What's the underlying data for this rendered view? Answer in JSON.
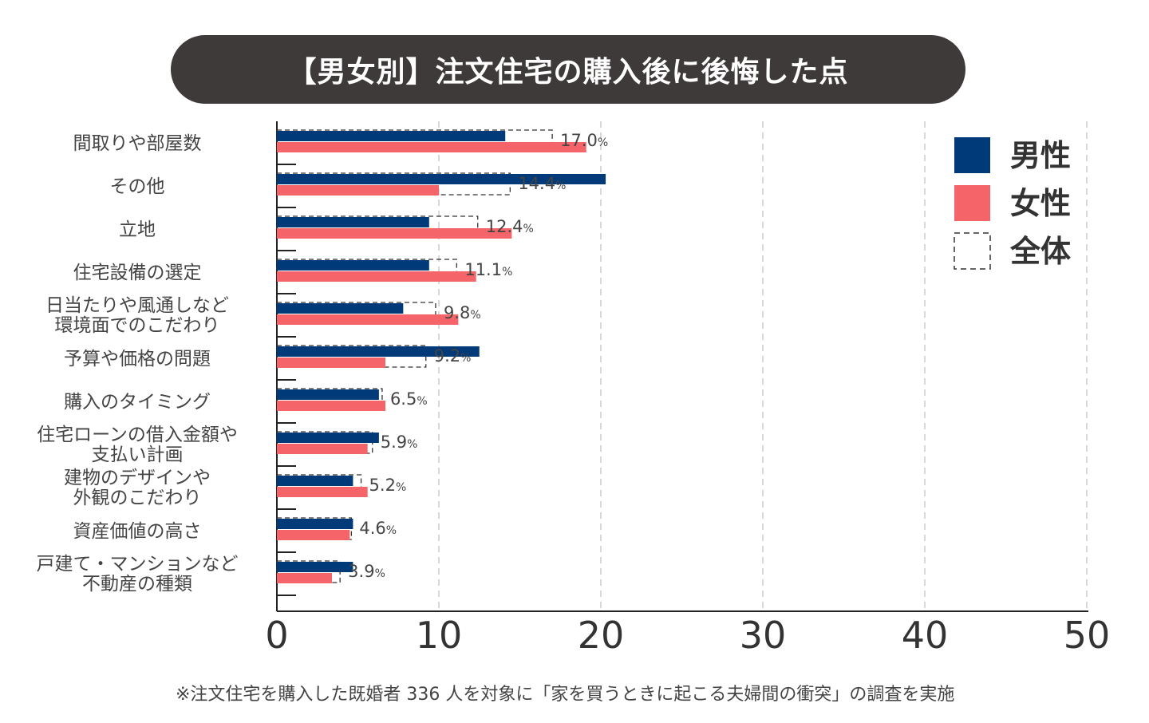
{
  "title": "【男女別】注文住宅の購入後に後悔した点",
  "footnote": "※注文住宅を購入した既婚者 336 人を対象に「家を買うときに起こる夫婦間の衝突」の調査を実施",
  "colors": {
    "male": "#003a78",
    "female": "#f46468",
    "overall_border": "#333333",
    "grid": "#cccccc",
    "axis": "#222222"
  },
  "chart_data": {
    "type": "bar",
    "orientation": "horizontal",
    "title": "【男女別】注文住宅の購入後に後悔した点",
    "xlim": [
      0,
      50
    ],
    "xticks": [
      "0",
      "10",
      "20",
      "30",
      "40",
      "50"
    ],
    "grid": "vertical dashed",
    "legend_position": "top-right",
    "percent_suffix": "%",
    "categories": [
      [
        "間取りや部屋数"
      ],
      [
        "その他"
      ],
      [
        "立地"
      ],
      [
        "住宅設備の選定"
      ],
      [
        "日当たりや風通しなど",
        "環境面でのこだわり"
      ],
      [
        "予算や価格の問題"
      ],
      [
        "購入のタイミング"
      ],
      [
        "住宅ローンの借入金額や",
        "支払い計画"
      ],
      [
        "建物のデザインや",
        "外観のこだわり"
      ],
      [
        "資産価値の高さ"
      ],
      [
        "戸建て・マンションなど",
        "不動産の種類"
      ]
    ],
    "series": [
      {
        "name": "男性",
        "values": [
          14.1,
          20.3,
          9.4,
          9.4,
          7.8,
          12.5,
          6.3,
          6.3,
          4.7,
          4.7,
          4.7
        ]
      },
      {
        "name": "女性",
        "values": [
          19.1,
          10.0,
          14.5,
          12.3,
          11.2,
          6.7,
          6.7,
          5.6,
          5.6,
          4.5,
          3.4
        ]
      },
      {
        "name": "全体",
        "values": [
          17.0,
          14.4,
          12.4,
          11.1,
          9.8,
          9.2,
          6.5,
          5.9,
          5.2,
          4.6,
          3.9
        ]
      }
    ],
    "overall_labels": [
      "17.0",
      "14.4",
      "12.4",
      "11.1",
      "9.8",
      "9.2",
      "6.5",
      "5.9",
      "5.2",
      "4.6",
      "3.9"
    ]
  }
}
